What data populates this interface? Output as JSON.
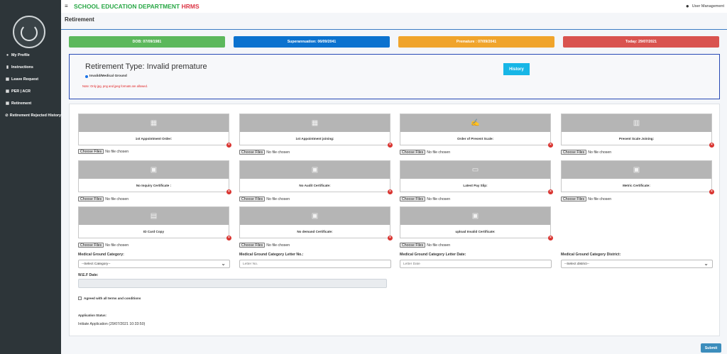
{
  "app": {
    "title_main": "SCHOOL EDUCATION DEPARTMENT",
    "title_accent": "HRMS",
    "user_label": "User Management"
  },
  "sidebar": {
    "items": [
      {
        "label": "My Profile",
        "icon": "user-icon"
      },
      {
        "label": "Instructions",
        "icon": "file-icon"
      },
      {
        "label": "Leave Request",
        "icon": "calendar-icon"
      },
      {
        "label": "PER | ACR",
        "icon": "calendar-icon"
      },
      {
        "label": "Retirement",
        "icon": "calendar-icon"
      },
      {
        "label": "Retirement Rejected History",
        "icon": "history-icon"
      }
    ]
  },
  "page": {
    "title": "Retirement"
  },
  "badges": {
    "dob": "DOB: 07/09/1981",
    "superannuation": "Superannuation: 06/09/2041",
    "premature": "Premature : 07/09/2041",
    "today": "Today: 29/07/2021",
    "colors": {
      "dob": "#5cb85c",
      "superannuation": "#0b72cf",
      "premature": "#f0a42b",
      "today": "#d9534f"
    }
  },
  "retirement": {
    "type_title": "Retirement Type: Invalid premature",
    "radio_label": "Invalid/Medical Ground",
    "note": "Note: Only jpg, png and jpeg formats are allowed.",
    "history_button": "History"
  },
  "uploads": {
    "choose_label": "Choose Files",
    "no_file": "No file chosen",
    "cards": [
      {
        "label": "1st Appointment Order:",
        "icon": "calendar-clock-icon"
      },
      {
        "label": "1st Appointment joining:",
        "icon": "calendar-plus-icon"
      },
      {
        "label": "Order of Present Scale:",
        "icon": "scale-order-icon"
      },
      {
        "label": "Present Scale Joining:",
        "icon": "bar-chart-icon"
      },
      {
        "label": "No Inquiry Certificate :",
        "icon": "certificate-icon"
      },
      {
        "label": "No Audit Certificate:",
        "icon": "certificate-icon"
      },
      {
        "label": "Latest Pay Slip:",
        "icon": "image-icon"
      },
      {
        "label": "Metric Certificate:",
        "icon": "certificate-icon"
      },
      {
        "label": "ID Card Copy",
        "icon": "id-card-icon"
      },
      {
        "label": "No demand Certificate:",
        "icon": "certificate-icon"
      },
      {
        "label": "upload Invalid Certificate:",
        "icon": "certificate-icon"
      }
    ]
  },
  "form": {
    "category_label": "Medical Ground Category:",
    "category_value": "--Select Category--",
    "letter_no_label": "Medical Ground Category Letter No.:",
    "letter_no_placeholder": "Letter No.",
    "letter_date_label": "Medical Ground Category Letter Date:",
    "letter_date_placeholder": "Letter Date",
    "district_label": "Medical Ground Category District:",
    "district_value": "--Select district--",
    "wef_label": "W.E.F Date:",
    "agree_label": "Agreed with all terms and conditions",
    "status_label": "Application Status:",
    "status_value": "Initiate Application (29/07/2021 10:33:50)",
    "submit": "Submit"
  }
}
